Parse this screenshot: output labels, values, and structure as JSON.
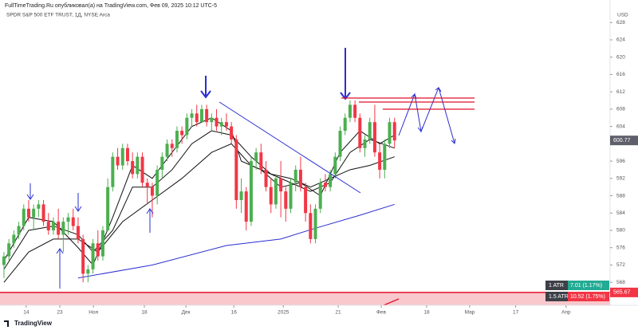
{
  "header": {
    "publisher": "FullTimeTrading.Ru опубликовал(а) на TradingView.com, Фев 09, 2025 10:12 UTC-5",
    "symbol": "SPDR S&P 500 ETF TRUST, 1Д, NYSE Arca",
    "currency": "USD",
    "logo": "TradingView"
  },
  "chart_data": {
    "type": "candlestick",
    "up_color": "#4caf50",
    "down_color": "#f23645",
    "grid": false,
    "ylim": [
      562.7,
      633.2
    ],
    "xlim": [
      -0.8,
      122.6
    ],
    "yticks": [
      568,
      572,
      576,
      580,
      584,
      588,
      592,
      596,
      600,
      604,
      608,
      612,
      616,
      620,
      624,
      628
    ],
    "xticks": [
      {
        "value": 4.5,
        "label": "14"
      },
      {
        "value": 11.3,
        "label": "23"
      },
      {
        "value": 18.1,
        "label": "Ноя"
      },
      {
        "value": 28.4,
        "label": "18"
      },
      {
        "value": 36.8,
        "label": "Дек"
      },
      {
        "value": 46.5,
        "label": "16"
      },
      {
        "value": 56.5,
        "label": "2025"
      },
      {
        "value": 67.6,
        "label": "21"
      },
      {
        "value": 76.3,
        "label": "Фев"
      },
      {
        "value": 85.5,
        "label": "18"
      },
      {
        "value": 94.2,
        "label": "Мар"
      },
      {
        "value": 103.5,
        "label": "17"
      },
      {
        "value": 113.7,
        "label": "Апр"
      }
    ],
    "x": [
      0,
      1,
      2,
      3,
      4,
      5,
      6,
      7,
      8,
      9,
      10,
      11,
      12,
      13,
      14,
      15,
      16,
      17,
      18,
      19,
      20,
      21,
      22,
      23,
      24,
      25,
      26,
      27,
      28,
      29,
      30,
      31,
      32,
      33,
      34,
      35,
      36,
      37,
      38,
      39,
      40,
      41,
      42,
      43,
      44,
      45,
      46,
      47,
      48,
      49,
      50,
      51,
      52,
      53,
      54,
      55,
      56,
      57,
      58,
      59,
      60,
      61,
      62,
      63,
      64,
      65,
      66,
      67,
      68,
      69,
      70,
      71,
      72,
      73,
      74,
      75,
      76,
      77,
      78,
      79
    ],
    "open": [
      572,
      574,
      577,
      579,
      581,
      585,
      583,
      585,
      586,
      582,
      580,
      582,
      579,
      582,
      583,
      581,
      578,
      570,
      571,
      577,
      574,
      580,
      590,
      597,
      595,
      599,
      596,
      593,
      597,
      591,
      590,
      588,
      594,
      597,
      600,
      599,
      603,
      602,
      606,
      607,
      605,
      608,
      605,
      606,
      604,
      605,
      604,
      601,
      587,
      589,
      582,
      596,
      598,
      594,
      590,
      586,
      592,
      589,
      585,
      591,
      594,
      590,
      584,
      578,
      585,
      591,
      590,
      593,
      597,
      603,
      606,
      609,
      606,
      599,
      601,
      605,
      598,
      594,
      600,
      605
    ],
    "high": [
      575,
      578,
      580,
      582,
      586,
      587,
      586,
      587,
      587,
      584,
      583,
      585,
      583,
      584,
      585,
      583,
      579,
      572,
      578,
      580,
      581,
      592,
      598,
      599,
      600,
      600,
      598,
      598,
      598,
      592,
      591,
      595,
      598,
      601,
      601,
      604,
      604,
      607,
      608,
      609,
      609,
      609,
      607,
      608,
      606,
      607,
      605,
      602,
      592,
      590,
      597,
      599,
      600,
      596,
      592,
      593,
      596,
      590,
      592,
      595,
      597,
      591,
      586,
      586,
      592,
      593,
      594,
      598,
      604,
      607,
      610,
      610,
      607,
      602,
      606,
      609,
      600,
      601,
      606,
      606
    ],
    "low": [
      569,
      573,
      576,
      578,
      580,
      582,
      580,
      583,
      581,
      579,
      579,
      578,
      575,
      579,
      580,
      577,
      568,
      568,
      570,
      573,
      573,
      580,
      589,
      594,
      594,
      595,
      592,
      592,
      590,
      586,
      583,
      586,
      592,
      596,
      597,
      598,
      600,
      601,
      604,
      604,
      605,
      604,
      603,
      603,
      602,
      603,
      600,
      585,
      584,
      580,
      581,
      594,
      593,
      589,
      584,
      585,
      583,
      582,
      584,
      589,
      589,
      582,
      577,
      577,
      584,
      589,
      589,
      592,
      596,
      602,
      605,
      605,
      598,
      597,
      600,
      597,
      592,
      592,
      599,
      599
    ],
    "close": [
      574,
      577,
      579,
      581,
      585,
      583,
      585,
      586,
      582,
      580,
      582,
      579,
      582,
      583,
      581,
      578,
      570,
      571,
      577,
      574,
      580,
      590,
      597,
      595,
      599,
      596,
      593,
      597,
      591,
      590,
      588,
      594,
      597,
      600,
      599,
      603,
      602,
      606,
      607,
      605,
      608,
      605,
      606,
      604,
      605,
      604,
      601,
      587,
      589,
      582,
      596,
      598,
      594,
      590,
      586,
      592,
      589,
      585,
      591,
      594,
      590,
      584,
      578,
      585,
      591,
      590,
      593,
      597,
      603,
      606,
      609,
      606,
      599,
      601,
      605,
      598,
      594,
      600,
      605,
      600.77
    ],
    "lines": [
      {
        "color": "#2a2ed0",
        "x": [
          15,
          30,
          45,
          56,
          63,
          72,
          79
        ],
        "values": [
          569,
          572,
          576.5,
          578,
          580.5,
          583.5,
          586
        ]
      },
      {
        "color": "#111111",
        "x": [
          0,
          5,
          10,
          15,
          18,
          22,
          26,
          30,
          34,
          38,
          42,
          46,
          48,
          52,
          56,
          60,
          64,
          68,
          72,
          76,
          79
        ],
        "values": [
          573,
          583,
          582,
          576,
          572,
          583,
          595,
          592,
          598,
          604,
          606,
          603,
          596,
          594,
          590,
          591,
          588,
          598,
          603,
          600,
          602
        ]
      },
      {
        "color": "#111111",
        "x": [
          0,
          5,
          10,
          15,
          18,
          22,
          26,
          30,
          34,
          38,
          42,
          46,
          50,
          54,
          58,
          62,
          66,
          70,
          74,
          79
        ],
        "values": [
          571,
          580,
          581,
          579,
          575,
          580,
          590,
          590,
          594,
          600,
          603,
          602,
          597,
          593,
          591,
          589,
          591,
          598,
          601,
          599
        ]
      },
      {
        "color": "#111111",
        "x": [
          0,
          5,
          10,
          15,
          19,
          24,
          30,
          36,
          42,
          46,
          50,
          54,
          58,
          62,
          66,
          70,
          74,
          79
        ],
        "values": [
          568,
          575,
          578,
          578,
          575,
          582,
          587,
          592,
          598,
          600,
          595,
          593,
          592,
          590,
          592,
          594,
          595,
          597
        ]
      }
    ],
    "price_labels": [
      {
        "value": 600.77,
        "color": "#5d606b"
      },
      {
        "value": 565.67,
        "color": "#f23645"
      }
    ],
    "zone": {
      "value": 565.67,
      "color": "#f8c8cc",
      "line_color": "#e0102a"
    },
    "atr": [
      {
        "label": "1 ATR",
        "text": "7.01 (1.17%)",
        "color": "#22ab94"
      },
      {
        "label": "1.5 ATR",
        "text": "10.52 (1.75%)",
        "color": "#f23645"
      }
    ]
  }
}
